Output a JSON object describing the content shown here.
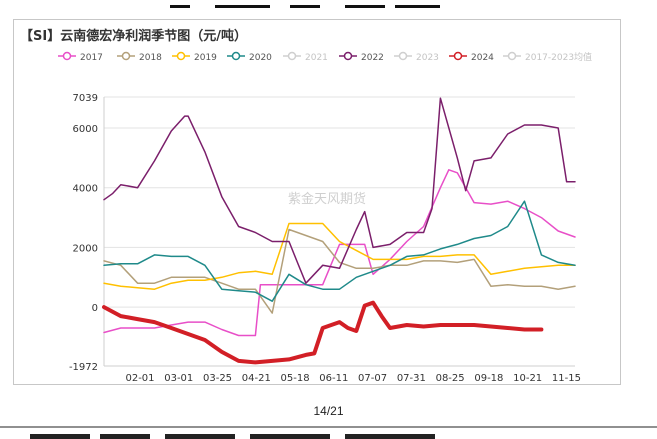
{
  "chart_data": {
    "type": "line",
    "title": "【SI】云南德宏净利润季节图（元/吨）",
    "watermark": "紫金天风期货",
    "ylim": [
      -1972,
      7039
    ],
    "y_ticks": [
      -1972,
      0,
      2000,
      4000,
      6000,
      7039
    ],
    "x_ticks": [
      "02-01",
      "03-01",
      "03-25",
      "04-21",
      "05-18",
      "06-11",
      "07-07",
      "07-31",
      "08-25",
      "09-18",
      "10-21",
      "11-15"
    ],
    "legend_position": "top",
    "grid": true,
    "series": [
      {
        "name": "2017",
        "color": "#e84fc8",
        "visible": true,
        "width": 1.5,
        "points": [
          [
            0,
            -850
          ],
          [
            1,
            -700
          ],
          [
            2,
            -700
          ],
          [
            3,
            -700
          ],
          [
            4,
            -600
          ],
          [
            5,
            -500
          ],
          [
            6,
            -500
          ],
          [
            7,
            -750
          ],
          [
            8,
            -950
          ],
          [
            9,
            -950
          ],
          [
            9.3,
            750
          ],
          [
            10,
            750
          ],
          [
            11,
            750
          ],
          [
            12,
            750
          ],
          [
            13,
            750
          ],
          [
            14,
            2100
          ],
          [
            15,
            2100
          ],
          [
            15.5,
            2100
          ],
          [
            16,
            1100
          ],
          [
            17,
            1600
          ],
          [
            18,
            2200
          ],
          [
            19,
            2700
          ],
          [
            20,
            4000
          ],
          [
            20.5,
            4600
          ],
          [
            21,
            4500
          ],
          [
            22,
            3500
          ],
          [
            23,
            3450
          ],
          [
            24,
            3550
          ],
          [
            25,
            3300
          ],
          [
            26,
            3000
          ],
          [
            27,
            2550
          ],
          [
            28,
            2350
          ]
        ]
      },
      {
        "name": "2018",
        "color": "#b3a07a",
        "visible": true,
        "width": 1.5,
        "points": [
          [
            0,
            1550
          ],
          [
            1,
            1400
          ],
          [
            2,
            800
          ],
          [
            3,
            800
          ],
          [
            4,
            1000
          ],
          [
            5,
            1000
          ],
          [
            6,
            1000
          ],
          [
            7,
            800
          ],
          [
            8,
            600
          ],
          [
            9,
            600
          ],
          [
            10,
            -200
          ],
          [
            11,
            2600
          ],
          [
            12,
            2400
          ],
          [
            13,
            2200
          ],
          [
            14,
            1500
          ],
          [
            15,
            1300
          ],
          [
            16,
            1300
          ],
          [
            17,
            1400
          ],
          [
            18,
            1400
          ],
          [
            19,
            1550
          ],
          [
            20,
            1550
          ],
          [
            21,
            1500
          ],
          [
            22,
            1600
          ],
          [
            23,
            700
          ],
          [
            24,
            750
          ],
          [
            25,
            700
          ],
          [
            26,
            700
          ],
          [
            27,
            600
          ],
          [
            28,
            700
          ]
        ]
      },
      {
        "name": "2019",
        "color": "#ffc000",
        "visible": true,
        "width": 1.5,
        "points": [
          [
            0,
            800
          ],
          [
            1,
            700
          ],
          [
            2,
            650
          ],
          [
            3,
            600
          ],
          [
            4,
            800
          ],
          [
            5,
            900
          ],
          [
            6,
            900
          ],
          [
            7,
            1000
          ],
          [
            8,
            1150
          ],
          [
            9,
            1200
          ],
          [
            10,
            1100
          ],
          [
            11,
            2800
          ],
          [
            12,
            2800
          ],
          [
            13,
            2800
          ],
          [
            14,
            2200
          ],
          [
            15,
            1900
          ],
          [
            16,
            1600
          ],
          [
            17,
            1600
          ],
          [
            18,
            1600
          ],
          [
            19,
            1700
          ],
          [
            20,
            1700
          ],
          [
            21,
            1750
          ],
          [
            22,
            1750
          ],
          [
            23,
            1100
          ],
          [
            24,
            1200
          ],
          [
            25,
            1300
          ],
          [
            26,
            1350
          ],
          [
            27,
            1400
          ],
          [
            28,
            1400
          ]
        ]
      },
      {
        "name": "2020",
        "color": "#1f8a8a",
        "visible": true,
        "width": 1.5,
        "points": [
          [
            0,
            1400
          ],
          [
            1,
            1450
          ],
          [
            2,
            1450
          ],
          [
            3,
            1750
          ],
          [
            4,
            1700
          ],
          [
            5,
            1700
          ],
          [
            6,
            1400
          ],
          [
            7,
            600
          ],
          [
            8,
            550
          ],
          [
            9,
            500
          ],
          [
            10,
            200
          ],
          [
            11,
            1100
          ],
          [
            12,
            750
          ],
          [
            13,
            600
          ],
          [
            14,
            600
          ],
          [
            15,
            1000
          ],
          [
            16,
            1200
          ],
          [
            17,
            1400
          ],
          [
            18,
            1700
          ],
          [
            19,
            1750
          ],
          [
            20,
            1950
          ],
          [
            21,
            2100
          ],
          [
            22,
            2300
          ],
          [
            23,
            2400
          ],
          [
            24,
            2700
          ],
          [
            25,
            3550
          ],
          [
            26,
            1750
          ],
          [
            27,
            1500
          ],
          [
            28,
            1400
          ]
        ]
      },
      {
        "name": "2021",
        "color": "#cfcfcf",
        "visible": false,
        "width": 1.5,
        "points": []
      },
      {
        "name": "2022",
        "color": "#7b1f6b",
        "visible": true,
        "width": 1.5,
        "points": [
          [
            0,
            3600
          ],
          [
            0.5,
            3800
          ],
          [
            1,
            4100
          ],
          [
            2,
            4000
          ],
          [
            3,
            4900
          ],
          [
            4,
            5900
          ],
          [
            4.8,
            6400
          ],
          [
            5,
            6400
          ],
          [
            6,
            5200
          ],
          [
            7,
            3700
          ],
          [
            8,
            2700
          ],
          [
            9,
            2500
          ],
          [
            10,
            2200
          ],
          [
            11,
            2200
          ],
          [
            11.5,
            1500
          ],
          [
            12,
            800
          ],
          [
            13,
            1400
          ],
          [
            14,
            1300
          ],
          [
            15,
            2600
          ],
          [
            15.5,
            3200
          ],
          [
            16,
            2000
          ],
          [
            17,
            2100
          ],
          [
            18,
            2500
          ],
          [
            19,
            2500
          ],
          [
            19.5,
            3300
          ],
          [
            20,
            7000
          ],
          [
            21,
            5000
          ],
          [
            21.5,
            3900
          ],
          [
            22,
            4900
          ],
          [
            23,
            5000
          ],
          [
            24,
            5800
          ],
          [
            25,
            6100
          ],
          [
            26,
            6100
          ],
          [
            27,
            6000
          ],
          [
            27.5,
            4200
          ],
          [
            28,
            4200
          ]
        ]
      },
      {
        "name": "2023",
        "color": "#cfcfcf",
        "visible": false,
        "width": 1.5,
        "points": []
      },
      {
        "name": "2024",
        "color": "#d21f26",
        "visible": true,
        "width": 4,
        "points": [
          [
            0,
            0
          ],
          [
            1,
            -300
          ],
          [
            2,
            -400
          ],
          [
            3,
            -500
          ],
          [
            4,
            -700
          ],
          [
            5,
            -900
          ],
          [
            6,
            -1100
          ],
          [
            7,
            -1500
          ],
          [
            8,
            -1800
          ],
          [
            9,
            -1850
          ],
          [
            10,
            -1800
          ],
          [
            11,
            -1750
          ],
          [
            12,
            -1600
          ],
          [
            12.5,
            -1550
          ],
          [
            13,
            -700
          ],
          [
            14,
            -500
          ],
          [
            14.5,
            -700
          ],
          [
            15,
            -800
          ],
          [
            15.5,
            50
          ],
          [
            16,
            150
          ],
          [
            16.5,
            -300
          ],
          [
            17,
            -700
          ],
          [
            18,
            -600
          ],
          [
            19,
            -650
          ],
          [
            20,
            -600
          ],
          [
            21,
            -600
          ],
          [
            22,
            -600
          ],
          [
            23,
            -650
          ],
          [
            24,
            -700
          ],
          [
            25,
            -750
          ],
          [
            26,
            -750
          ]
        ]
      },
      {
        "name": "2017-2023均值",
        "color": "#cfcfcf",
        "visible": false,
        "width": 1.5,
        "points": []
      }
    ]
  },
  "page": {
    "number": "14/21"
  }
}
